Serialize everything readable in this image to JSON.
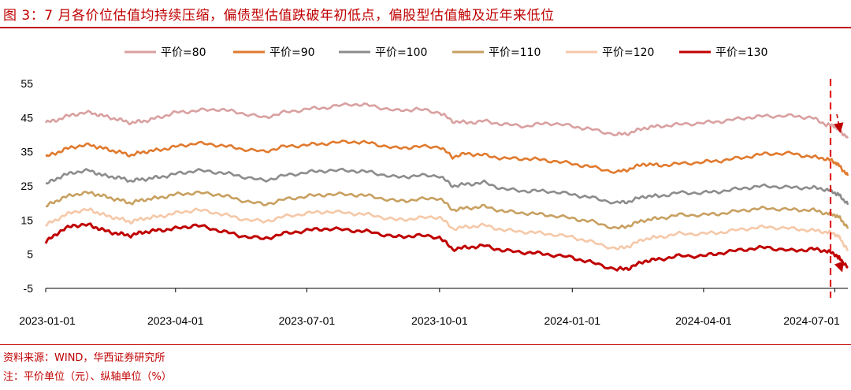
{
  "title": "图 3：7 月各价位估值均持续压缩，偏债型估值跌破年初低点，偏股型估值触及近年来低位",
  "source": "资料来源：WIND，华西证券研究所",
  "note": "注：平价单位（元）、纵轴单位（%）",
  "chart_data": {
    "type": "line",
    "x_start": "2023-01-01",
    "x_end": "2024-07-10",
    "x_ticks": [
      "2023-01-01",
      "2023-04-01",
      "2023-07-01",
      "2023-10-01",
      "2024-01-01",
      "2024-04-01",
      "2024-07-01"
    ],
    "y_ticks": [
      -5,
      5,
      15,
      25,
      35,
      45,
      55
    ],
    "ylim": [
      -5,
      55
    ],
    "grid": false,
    "legend_position": "top",
    "marker_date": "2024-06-28",
    "series": [
      {
        "name": "平价=80",
        "color": "#d9a0a0",
        "points": [
          [
            "2023-01-01",
            43.5
          ],
          [
            "2023-01-10",
            44.5
          ],
          [
            "2023-01-20",
            46.0
          ],
          [
            "2023-02-01",
            46.5
          ],
          [
            "2023-02-10",
            45.5
          ],
          [
            "2023-02-20",
            44.5
          ],
          [
            "2023-03-01",
            43.5
          ],
          [
            "2023-03-10",
            44.0
          ],
          [
            "2023-03-20",
            45.0
          ],
          [
            "2023-04-01",
            46.5
          ],
          [
            "2023-04-15",
            47.0
          ],
          [
            "2023-05-01",
            47.5
          ],
          [
            "2023-05-15",
            46.5
          ],
          [
            "2023-06-01",
            45.0
          ],
          [
            "2023-06-15",
            46.5
          ],
          [
            "2023-07-01",
            47.5
          ],
          [
            "2023-07-15",
            48.0
          ],
          [
            "2023-08-01",
            49.0
          ],
          [
            "2023-08-15",
            48.5
          ],
          [
            "2023-09-01",
            47.0
          ],
          [
            "2023-09-15",
            47.5
          ],
          [
            "2023-10-01",
            46.5
          ],
          [
            "2023-10-10",
            44.0
          ],
          [
            "2023-10-20",
            43.5
          ],
          [
            "2023-11-01",
            44.0
          ],
          [
            "2023-11-15",
            43.0
          ],
          [
            "2023-12-01",
            42.5
          ],
          [
            "2023-12-15",
            43.5
          ],
          [
            "2024-01-01",
            42.5
          ],
          [
            "2024-01-15",
            41.5
          ],
          [
            "2024-02-01",
            40.0
          ],
          [
            "2024-02-10",
            40.5
          ],
          [
            "2024-02-20",
            42.0
          ],
          [
            "2024-03-01",
            42.5
          ],
          [
            "2024-03-15",
            43.0
          ],
          [
            "2024-04-01",
            43.5
          ],
          [
            "2024-04-15",
            44.0
          ],
          [
            "2024-05-01",
            45.0
          ],
          [
            "2024-05-15",
            45.5
          ],
          [
            "2024-06-01",
            45.5
          ],
          [
            "2024-06-15",
            45.0
          ],
          [
            "2024-06-25",
            43.0
          ],
          [
            "2024-07-01",
            42.5
          ],
          [
            "2024-07-05",
            41.0
          ],
          [
            "2024-07-10",
            39.0
          ]
        ]
      },
      {
        "name": "平价=90",
        "color": "#e07a2e",
        "points": [
          [
            "2023-01-01",
            33.5
          ],
          [
            "2023-01-10",
            35.0
          ],
          [
            "2023-01-20",
            36.5
          ],
          [
            "2023-02-01",
            37.0
          ],
          [
            "2023-02-10",
            36.0
          ],
          [
            "2023-02-20",
            35.0
          ],
          [
            "2023-03-01",
            34.0
          ],
          [
            "2023-03-10",
            35.0
          ],
          [
            "2023-03-20",
            35.5
          ],
          [
            "2023-04-01",
            36.5
          ],
          [
            "2023-04-15",
            37.5
          ],
          [
            "2023-05-01",
            37.0
          ],
          [
            "2023-05-15",
            36.0
          ],
          [
            "2023-06-01",
            35.0
          ],
          [
            "2023-06-15",
            36.5
          ],
          [
            "2023-07-01",
            37.0
          ],
          [
            "2023-07-15",
            37.5
          ],
          [
            "2023-08-01",
            38.0
          ],
          [
            "2023-08-15",
            37.5
          ],
          [
            "2023-09-01",
            36.0
          ],
          [
            "2023-09-15",
            36.5
          ],
          [
            "2023-10-01",
            36.5
          ],
          [
            "2023-10-10",
            33.5
          ],
          [
            "2023-10-20",
            34.5
          ],
          [
            "2023-11-01",
            34.0
          ],
          [
            "2023-11-15",
            33.0
          ],
          [
            "2023-12-01",
            33.0
          ],
          [
            "2023-12-15",
            32.5
          ],
          [
            "2024-01-01",
            31.5
          ],
          [
            "2024-01-15",
            30.5
          ],
          [
            "2024-02-01",
            29.0
          ],
          [
            "2024-02-10",
            30.0
          ],
          [
            "2024-02-20",
            31.5
          ],
          [
            "2024-03-01",
            31.0
          ],
          [
            "2024-03-15",
            31.5
          ],
          [
            "2024-04-01",
            32.0
          ],
          [
            "2024-04-15",
            32.5
          ],
          [
            "2024-05-01",
            33.5
          ],
          [
            "2024-05-15",
            34.5
          ],
          [
            "2024-06-01",
            34.5
          ],
          [
            "2024-06-15",
            33.5
          ],
          [
            "2024-06-25",
            33.0
          ],
          [
            "2024-07-01",
            32.0
          ],
          [
            "2024-07-05",
            30.5
          ],
          [
            "2024-07-10",
            28.0
          ]
        ]
      },
      {
        "name": "平价=100",
        "color": "#8c8c8c",
        "points": [
          [
            "2023-01-01",
            25.5
          ],
          [
            "2023-01-10",
            27.5
          ],
          [
            "2023-01-20",
            29.0
          ],
          [
            "2023-02-01",
            29.5
          ],
          [
            "2023-02-10",
            28.0
          ],
          [
            "2023-02-20",
            27.5
          ],
          [
            "2023-03-01",
            26.5
          ],
          [
            "2023-03-10",
            27.0
          ],
          [
            "2023-03-20",
            27.5
          ],
          [
            "2023-04-01",
            28.5
          ],
          [
            "2023-04-15",
            29.5
          ],
          [
            "2023-05-01",
            29.0
          ],
          [
            "2023-05-15",
            28.0
          ],
          [
            "2023-06-01",
            26.5
          ],
          [
            "2023-06-15",
            28.0
          ],
          [
            "2023-07-01",
            29.0
          ],
          [
            "2023-07-15",
            29.5
          ],
          [
            "2023-08-01",
            29.5
          ],
          [
            "2023-08-15",
            29.0
          ],
          [
            "2023-09-01",
            27.5
          ],
          [
            "2023-09-15",
            28.0
          ],
          [
            "2023-10-01",
            28.0
          ],
          [
            "2023-10-10",
            25.0
          ],
          [
            "2023-10-20",
            25.5
          ],
          [
            "2023-11-01",
            26.0
          ],
          [
            "2023-11-15",
            24.0
          ],
          [
            "2023-12-01",
            23.5
          ],
          [
            "2023-12-15",
            23.5
          ],
          [
            "2024-01-01",
            22.5
          ],
          [
            "2024-01-15",
            21.5
          ],
          [
            "2024-02-01",
            20.0
          ],
          [
            "2024-02-10",
            20.5
          ],
          [
            "2024-02-20",
            22.0
          ],
          [
            "2024-03-01",
            22.0
          ],
          [
            "2024-03-15",
            23.0
          ],
          [
            "2024-04-01",
            23.0
          ],
          [
            "2024-04-15",
            23.5
          ],
          [
            "2024-05-01",
            24.5
          ],
          [
            "2024-05-15",
            25.0
          ],
          [
            "2024-06-01",
            24.5
          ],
          [
            "2024-06-15",
            24.5
          ],
          [
            "2024-06-25",
            24.0
          ],
          [
            "2024-07-01",
            23.0
          ],
          [
            "2024-07-05",
            22.0
          ],
          [
            "2024-07-10",
            19.5
          ]
        ]
      },
      {
        "name": "平价=110",
        "color": "#c8a060",
        "points": [
          [
            "2023-01-01",
            19.0
          ],
          [
            "2023-01-10",
            21.0
          ],
          [
            "2023-01-20",
            22.5
          ],
          [
            "2023-02-01",
            23.0
          ],
          [
            "2023-02-10",
            22.0
          ],
          [
            "2023-02-20",
            21.0
          ],
          [
            "2023-03-01",
            20.0
          ],
          [
            "2023-03-10",
            21.0
          ],
          [
            "2023-03-20",
            21.5
          ],
          [
            "2023-04-01",
            22.5
          ],
          [
            "2023-04-15",
            23.0
          ],
          [
            "2023-05-01",
            22.5
          ],
          [
            "2023-05-15",
            21.0
          ],
          [
            "2023-06-01",
            19.5
          ],
          [
            "2023-06-15",
            21.0
          ],
          [
            "2023-07-01",
            22.0
          ],
          [
            "2023-07-15",
            22.5
          ],
          [
            "2023-08-01",
            22.5
          ],
          [
            "2023-08-15",
            22.0
          ],
          [
            "2023-09-01",
            20.5
          ],
          [
            "2023-09-15",
            21.0
          ],
          [
            "2023-10-01",
            21.5
          ],
          [
            "2023-10-10",
            18.0
          ],
          [
            "2023-10-20",
            18.5
          ],
          [
            "2023-11-01",
            19.0
          ],
          [
            "2023-11-15",
            17.5
          ],
          [
            "2023-12-01",
            17.0
          ],
          [
            "2023-12-15",
            16.5
          ],
          [
            "2024-01-01",
            15.5
          ],
          [
            "2024-01-15",
            14.5
          ],
          [
            "2024-02-01",
            12.5
          ],
          [
            "2024-02-10",
            13.5
          ],
          [
            "2024-02-20",
            15.0
          ],
          [
            "2024-03-01",
            15.5
          ],
          [
            "2024-03-15",
            16.5
          ],
          [
            "2024-04-01",
            16.5
          ],
          [
            "2024-04-15",
            17.0
          ],
          [
            "2024-05-01",
            18.0
          ],
          [
            "2024-05-15",
            18.5
          ],
          [
            "2024-06-01",
            18.0
          ],
          [
            "2024-06-15",
            18.0
          ],
          [
            "2024-06-25",
            17.0
          ],
          [
            "2024-07-01",
            16.5
          ],
          [
            "2024-07-05",
            15.5
          ],
          [
            "2024-07-10",
            12.5
          ]
        ]
      },
      {
        "name": "平价=120",
        "color": "#f5c8a8",
        "points": [
          [
            "2023-01-01",
            13.5
          ],
          [
            "2023-01-10",
            15.5
          ],
          [
            "2023-01-20",
            17.5
          ],
          [
            "2023-02-01",
            18.0
          ],
          [
            "2023-02-10",
            16.5
          ],
          [
            "2023-02-20",
            15.5
          ],
          [
            "2023-03-01",
            14.5
          ],
          [
            "2023-03-10",
            15.5
          ],
          [
            "2023-03-20",
            16.0
          ],
          [
            "2023-04-01",
            17.0
          ],
          [
            "2023-04-15",
            18.0
          ],
          [
            "2023-05-01",
            17.0
          ],
          [
            "2023-05-15",
            15.5
          ],
          [
            "2023-06-01",
            14.5
          ],
          [
            "2023-06-15",
            16.0
          ],
          [
            "2023-07-01",
            17.0
          ],
          [
            "2023-07-15",
            17.5
          ],
          [
            "2023-08-01",
            17.0
          ],
          [
            "2023-08-15",
            16.5
          ],
          [
            "2023-09-01",
            15.0
          ],
          [
            "2023-09-15",
            15.5
          ],
          [
            "2023-10-01",
            16.0
          ],
          [
            "2023-10-10",
            12.5
          ],
          [
            "2023-10-20",
            13.0
          ],
          [
            "2023-11-01",
            13.5
          ],
          [
            "2023-11-15",
            12.0
          ],
          [
            "2023-12-01",
            11.5
          ],
          [
            "2023-12-15",
            11.0
          ],
          [
            "2024-01-01",
            10.0
          ],
          [
            "2024-01-15",
            8.5
          ],
          [
            "2024-02-01",
            6.5
          ],
          [
            "2024-02-10",
            7.5
          ],
          [
            "2024-02-20",
            9.5
          ],
          [
            "2024-03-01",
            10.0
          ],
          [
            "2024-03-15",
            11.0
          ],
          [
            "2024-04-01",
            11.0
          ],
          [
            "2024-04-15",
            11.5
          ],
          [
            "2024-05-01",
            12.5
          ],
          [
            "2024-05-15",
            13.0
          ],
          [
            "2024-06-01",
            12.5
          ],
          [
            "2024-06-15",
            12.0
          ],
          [
            "2024-06-25",
            11.5
          ],
          [
            "2024-07-01",
            11.0
          ],
          [
            "2024-07-05",
            9.5
          ],
          [
            "2024-07-10",
            6.0
          ]
        ]
      },
      {
        "name": "平价=130",
        "color": "#c00000",
        "points": [
          [
            "2023-01-01",
            8.5
          ],
          [
            "2023-01-10",
            11.5
          ],
          [
            "2023-01-20",
            13.5
          ],
          [
            "2023-02-01",
            13.5
          ],
          [
            "2023-02-10",
            12.0
          ],
          [
            "2023-02-20",
            11.0
          ],
          [
            "2023-03-01",
            10.5
          ],
          [
            "2023-03-10",
            11.5
          ],
          [
            "2023-03-20",
            12.0
          ],
          [
            "2023-04-01",
            12.5
          ],
          [
            "2023-04-15",
            13.5
          ],
          [
            "2023-05-01",
            12.0
          ],
          [
            "2023-05-15",
            10.5
          ],
          [
            "2023-06-01",
            9.5
          ],
          [
            "2023-06-15",
            11.0
          ],
          [
            "2023-07-01",
            12.0
          ],
          [
            "2023-07-15",
            12.5
          ],
          [
            "2023-08-01",
            12.0
          ],
          [
            "2023-08-15",
            11.5
          ],
          [
            "2023-09-01",
            10.0
          ],
          [
            "2023-09-15",
            10.5
          ],
          [
            "2023-10-01",
            10.0
          ],
          [
            "2023-10-10",
            6.5
          ],
          [
            "2023-10-20",
            7.0
          ],
          [
            "2023-11-01",
            7.5
          ],
          [
            "2023-11-15",
            6.0
          ],
          [
            "2023-12-01",
            5.5
          ],
          [
            "2023-12-15",
            5.0
          ],
          [
            "2024-01-01",
            4.0
          ],
          [
            "2024-01-15",
            2.5
          ],
          [
            "2024-02-01",
            0.5
          ],
          [
            "2024-02-10",
            1.0
          ],
          [
            "2024-02-20",
            3.0
          ],
          [
            "2024-03-01",
            3.5
          ],
          [
            "2024-03-15",
            4.5
          ],
          [
            "2024-04-01",
            4.5
          ],
          [
            "2024-04-15",
            5.5
          ],
          [
            "2024-05-01",
            6.5
          ],
          [
            "2024-05-15",
            7.0
          ],
          [
            "2024-06-01",
            6.0
          ],
          [
            "2024-06-15",
            6.5
          ],
          [
            "2024-06-25",
            6.0
          ],
          [
            "2024-07-01",
            5.0
          ],
          [
            "2024-07-05",
            3.5
          ],
          [
            "2024-07-10",
            1.0
          ]
        ]
      }
    ]
  }
}
